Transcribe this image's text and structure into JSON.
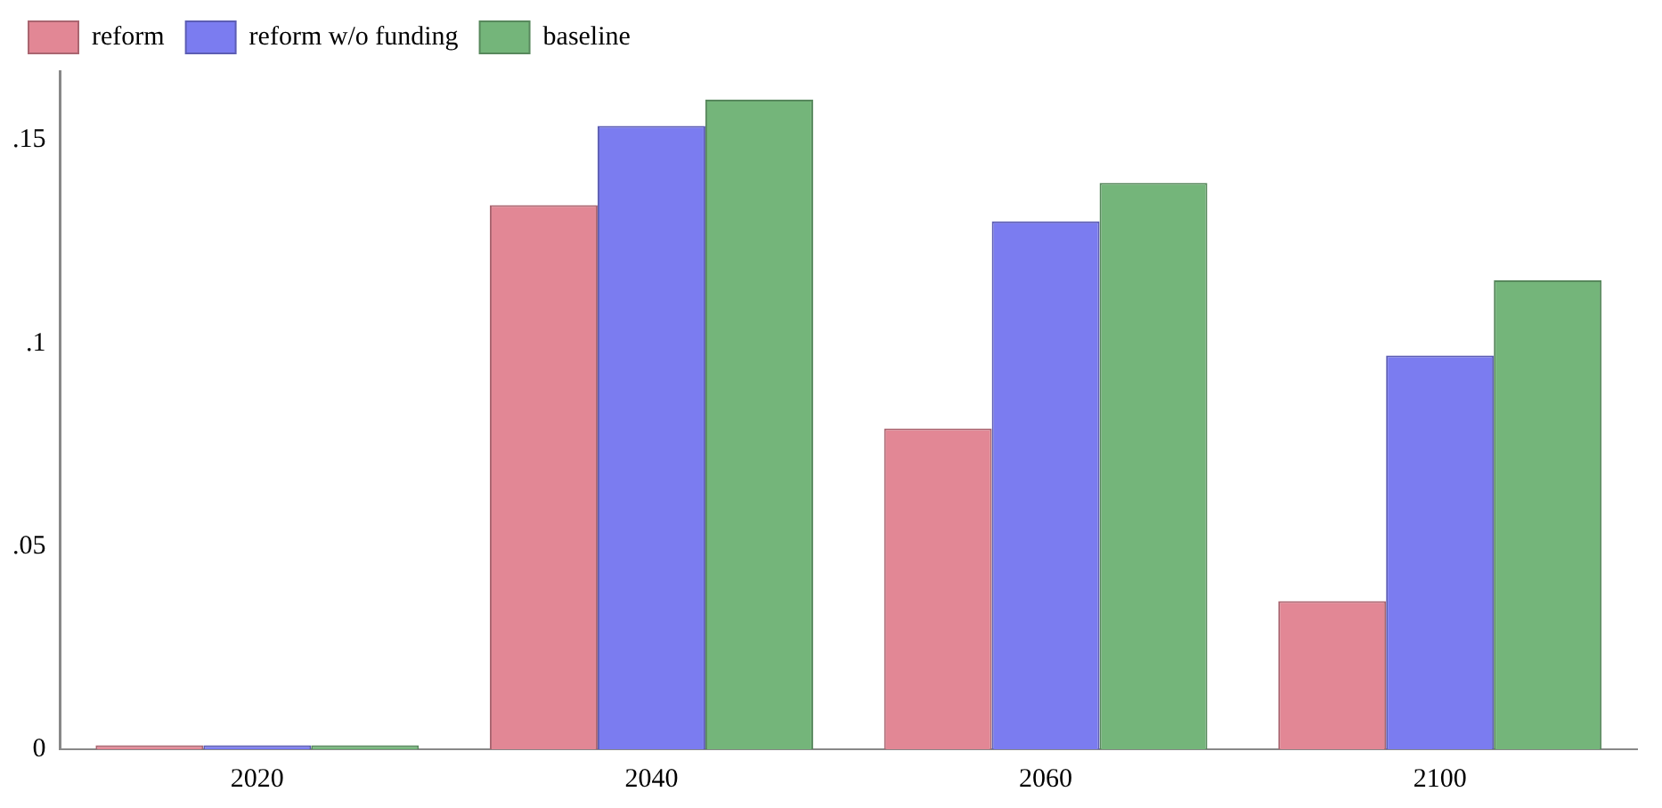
{
  "chart_data": {
    "type": "bar",
    "categories": [
      "2020",
      "2040",
      "2060",
      "2100"
    ],
    "series": [
      {
        "name": "reform",
        "color": "#e28795",
        "values": [
          0.001,
          0.134,
          0.079,
          0.0365
        ]
      },
      {
        "name": "reform w/o funding",
        "color": "#7b7cf0",
        "values": [
          0.001,
          0.1535,
          0.13,
          0.097
        ]
      },
      {
        "name": "baseline",
        "color": "#74b57a",
        "values": [
          0.001,
          0.16,
          0.1395,
          0.1155
        ]
      }
    ],
    "ylim": [
      0,
      0.167
    ],
    "yticks": [
      {
        "value": 0,
        "label": "0"
      },
      {
        "value": 0.05,
        "label": ".05"
      },
      {
        "value": 0.1,
        "label": ".1"
      },
      {
        "value": 0.15,
        "label": ".15"
      }
    ],
    "grid": false,
    "legend": "top left"
  }
}
